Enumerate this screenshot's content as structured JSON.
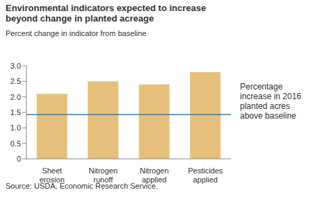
{
  "chart_data": {
    "type": "bar",
    "title": "Environmental indicators expected to increase beyond change in planted acreage",
    "subtitle": "Percent change in indicator from baseline",
    "categories": [
      "Sheet erosion",
      "Nitrogen runoff",
      "Nitrogen applied",
      "Pesticides applied"
    ],
    "values": [
      2.1,
      2.5,
      2.4,
      2.8
    ],
    "color": "#e6c07a",
    "ylim": [
      0,
      3
    ],
    "yticks": [
      0,
      0.5,
      {
        "value": 1,
        "label": "1.0"
      },
      1.5,
      {
        "value": 2,
        "label": "2.0"
      },
      2.5,
      {
        "value": 3,
        "label": "3.0"
      }
    ],
    "reference_line": {
      "value": 1.43,
      "label": "Percentage increase in 2016 planted acres above baseline",
      "color": "#3a7ca5"
    },
    "source": "Source: USDA, Economic Research Service."
  }
}
